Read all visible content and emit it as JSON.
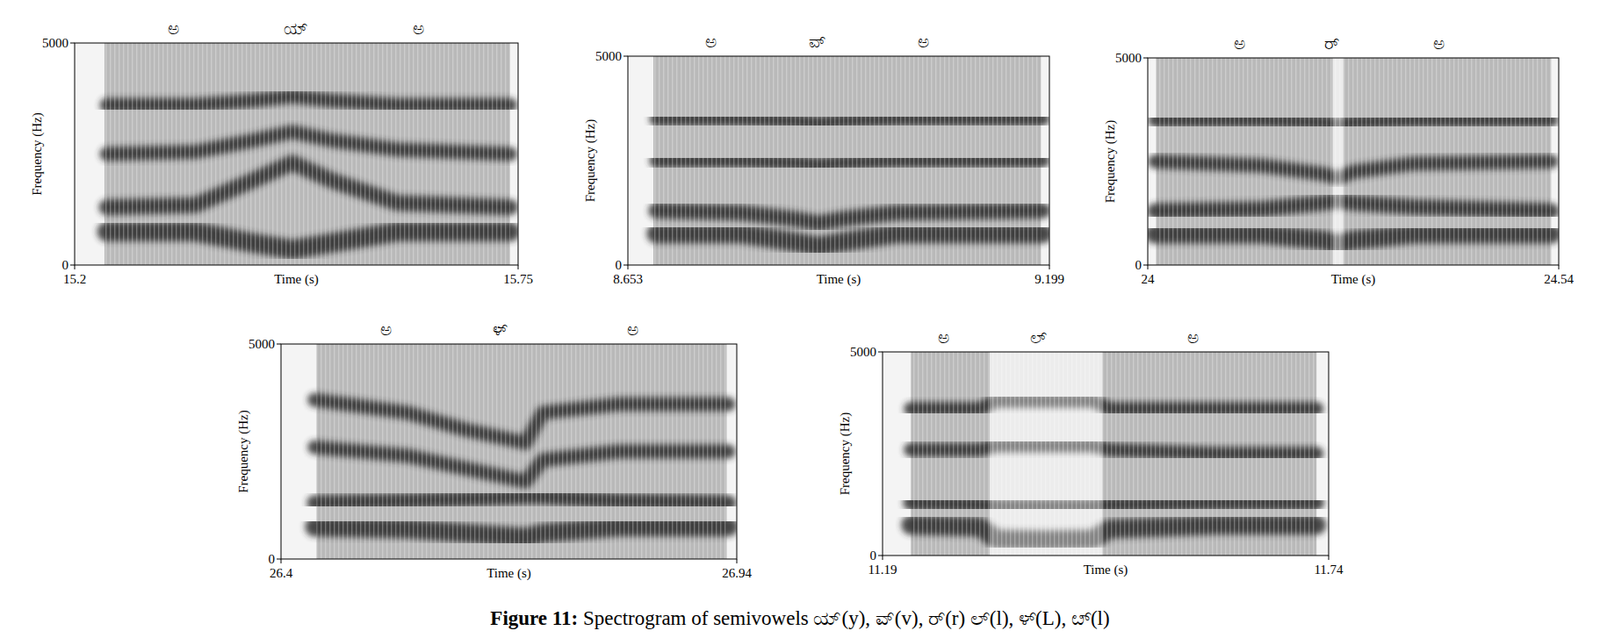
{
  "chart_data": [
    {
      "type": "spectrogram",
      "xlabel": "Time (s)",
      "ylabel": "Frequency (Hz)",
      "color": "#2b2b2b",
      "xlim": [
        15.2,
        15.75
      ],
      "xticks": [
        15.2,
        15.75
      ],
      "ylim": [
        0,
        5000
      ],
      "yticks": [
        0,
        5000
      ],
      "voiced": [
        15.237,
        15.74
      ],
      "annotations": [
        {
          "text": "ಅ",
          "x": 15.323
        },
        {
          "text": "ಯ್",
          "x": 15.474
        },
        {
          "text": "ಅ",
          "x": 15.626
        }
      ],
      "x": [
        15.24,
        15.35,
        15.42,
        15.47,
        15.52,
        15.6,
        15.74
      ],
      "series": [
        {
          "values": [
            750,
            750,
            500,
            350,
            500,
            750,
            750
          ]
        },
        {
          "values": [
            1300,
            1350,
            1900,
            2300,
            1900,
            1400,
            1300
          ]
        },
        {
          "values": [
            2500,
            2550,
            2800,
            3000,
            2800,
            2600,
            2500
          ]
        },
        {
          "values": [
            3600,
            3600,
            3700,
            3800,
            3700,
            3600,
            3600
          ]
        }
      ]
    },
    {
      "type": "spectrogram",
      "xlabel": "Time (s)",
      "ylabel": "Frequency (Hz)",
      "color": "#2b2b2b",
      "xlim": [
        8.653,
        9.199
      ],
      "xticks": [
        8.653,
        9.199
      ],
      "ylim": [
        0,
        5000
      ],
      "yticks": [
        0,
        5000
      ],
      "voiced": [
        8.686,
        9.188
      ],
      "annotations": [
        {
          "text": "ಅ",
          "x": 8.761
        },
        {
          "text": "ವ್",
          "x": 8.898
        },
        {
          "text": "ಅ",
          "x": 9.036
        }
      ],
      "x": [
        8.69,
        8.8,
        8.87,
        8.9,
        8.93,
        9.0,
        9.19
      ],
      "series": [
        {
          "values": [
            750,
            750,
            550,
            450,
            550,
            750,
            750
          ]
        },
        {
          "values": [
            1300,
            1250,
            1100,
            1000,
            1100,
            1250,
            1300
          ]
        },
        {
          "values": [
            2500,
            2500,
            2450,
            2400,
            2450,
            2500,
            2500
          ]
        },
        {
          "values": [
            3500,
            3500,
            3450,
            3400,
            3450,
            3500,
            3500
          ]
        }
      ]
    },
    {
      "type": "spectrogram",
      "xlabel": "Time (s)",
      "ylabel": "Frequency (Hz)",
      "color": "#2b2b2b",
      "xlim": [
        24,
        24.54
      ],
      "xticks": [
        24,
        24.54
      ],
      "ylim": [
        0,
        5000
      ],
      "yticks": [
        0,
        5000
      ],
      "voiced": [
        24.011,
        24.53
      ],
      "intervals": [
        [
          24.243,
          24.257
        ]
      ],
      "annotations": [
        {
          "text": "ಅ",
          "x": 24.121
        },
        {
          "text": "ರ್",
          "x": 24.242
        },
        {
          "text": "ಅ",
          "x": 24.383
        }
      ],
      "x": [
        24.01,
        24.15,
        24.23,
        24.25,
        24.27,
        24.35,
        24.53
      ],
      "series": [
        {
          "values": [
            750,
            750,
            600,
            500,
            600,
            750,
            750
          ]
        },
        {
          "values": [
            1300,
            1350,
            1500,
            1550,
            1500,
            1400,
            1300
          ]
        },
        {
          "values": [
            2500,
            2400,
            2200,
            2100,
            2250,
            2450,
            2500
          ]
        },
        {
          "values": [
            3500,
            3500,
            3450,
            3400,
            3450,
            3500,
            3500
          ]
        }
      ]
    },
    {
      "type": "spectrogram",
      "xlabel": "Time (s)",
      "ylabel": "Frequency (Hz)",
      "color": "#2b2b2b",
      "xlim": [
        26.4,
        26.94
      ],
      "xticks": [
        26.4,
        26.94
      ],
      "ylim": [
        0,
        5000
      ],
      "yticks": [
        0,
        5000
      ],
      "voiced": [
        26.442,
        26.928
      ],
      "annotations": [
        {
          "text": "ಅ",
          "x": 26.524
        },
        {
          "text": "ಳ್",
          "x": 26.66
        },
        {
          "text": "ಅ",
          "x": 26.817
        }
      ],
      "x": [
        26.44,
        26.55,
        26.62,
        26.69,
        26.71,
        26.8,
        26.93
      ],
      "series": [
        {
          "values": [
            750,
            700,
            600,
            500,
            600,
            750,
            750
          ]
        },
        {
          "values": [
            1300,
            1350,
            1400,
            1450,
            1450,
            1350,
            1300
          ]
        },
        {
          "values": [
            2600,
            2400,
            2100,
            1800,
            2300,
            2500,
            2500
          ]
        },
        {
          "values": [
            3700,
            3400,
            3000,
            2700,
            3400,
            3600,
            3600
          ]
        }
      ]
    },
    {
      "type": "spectrogram",
      "xlabel": "Time (s)",
      "ylabel": "Frequency (Hz)",
      "color": "#2b2b2b",
      "xlim": [
        11.19,
        11.74
      ],
      "xticks": [
        11.19,
        11.74
      ],
      "ylim": [
        0,
        5000
      ],
      "yticks": [
        0,
        5000
      ],
      "voiced": [
        11.225,
        11.725
      ],
      "intervals": [
        [
          11.322,
          11.461
        ]
      ],
      "annotations": [
        {
          "text": "ಅ",
          "x": 11.265
        },
        {
          "text": "ಲ್",
          "x": 11.382
        },
        {
          "text": "ಅ",
          "x": 11.573
        }
      ],
      "x": [
        11.225,
        11.31,
        11.33,
        11.39,
        11.45,
        11.47,
        11.6,
        11.725
      ],
      "series": [
        {
          "values": [
            750,
            700,
            400,
            380,
            400,
            650,
            750,
            750
          ]
        },
        {
          "values": [
            1300,
            1250,
            1200,
            1200,
            1200,
            1250,
            1300,
            1300
          ]
        },
        {
          "values": [
            2600,
            2600,
            2700,
            2700,
            2700,
            2600,
            2500,
            2500
          ]
        },
        {
          "values": [
            3600,
            3600,
            3800,
            3800,
            3800,
            3600,
            3600,
            3600
          ]
        }
      ]
    }
  ],
  "caption": {
    "label": "Figure 11:",
    "text": " Spectrogram of semivowels ಯ್(y), ವ್(v), ರ್(r) ಲ್(l), ಳ್(L), ೞ್(l)"
  }
}
